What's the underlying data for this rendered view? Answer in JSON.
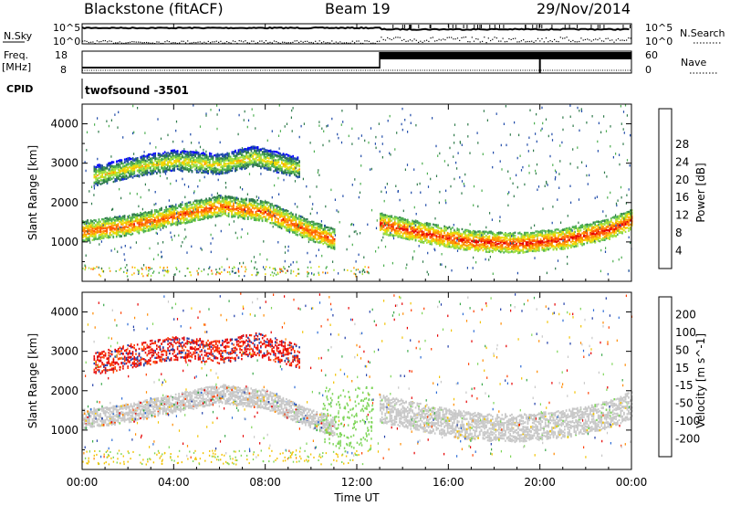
{
  "header": {
    "station": "Blackstone (fitACF)",
    "beam": "Beam 19",
    "date": "29/Nov/2014"
  },
  "side_labels": {
    "nsky": "N.Sky",
    "freq": "Freq.",
    "freq_unit": "[MHz]",
    "cpid": "CPID",
    "nsearch": "N.Search",
    "nave": "Nave"
  },
  "cpid_text": "twofsound  -3501",
  "noise_panel": {
    "left_ticks": [
      "10^5",
      "10^0"
    ],
    "right_ticks": [
      "10^5",
      "10^0"
    ]
  },
  "freq_panel": {
    "left_ticks": [
      "18",
      "8"
    ],
    "right_ticks": [
      "60",
      "0"
    ]
  },
  "chart_data": [
    {
      "type": "heatmap",
      "title": "",
      "ylabel": "Slant Range [km]",
      "xlabel": "Time UT",
      "ylim": [
        0,
        4500
      ],
      "yticks": [
        1000,
        2000,
        3000,
        4000
      ],
      "xlim": [
        0,
        24
      ],
      "xtick_labels": [
        "00:00",
        "04:00",
        "08:00",
        "12:00",
        "16:00",
        "20:00",
        "00:00"
      ],
      "colorbar": {
        "label": "Power [dB]",
        "ticks": [
          "4",
          "8",
          "12",
          "16",
          "20",
          "24",
          "28"
        ],
        "colors": [
          "#0000ff",
          "#1e4aa8",
          "#2e7a4a",
          "#4caf50",
          "#9fe040",
          "#f2d800",
          "#ff9900",
          "#ff5a00",
          "#e60000"
        ]
      },
      "bands": [
        {
          "name": "lower",
          "t": [
            0,
            2,
            4,
            6,
            8,
            10,
            11
          ],
          "range_km": [
            1300,
            1450,
            1700,
            1950,
            1800,
            1300,
            1100
          ],
          "power_db": 24
        },
        {
          "name": "upper",
          "t": [
            0.5,
            2,
            4,
            6,
            7.5,
            9.5
          ],
          "range_km": [
            2700,
            2900,
            3100,
            3000,
            3200,
            2900
          ],
          "power_db": 18
        },
        {
          "name": "morning",
          "t": [
            13,
            15,
            17,
            19,
            21,
            23,
            24
          ],
          "range_km": [
            1500,
            1250,
            1050,
            1000,
            1100,
            1350,
            1600
          ],
          "power_db": 26
        }
      ]
    },
    {
      "type": "heatmap",
      "title": "",
      "ylabel": "Slant Range [km]",
      "xlabel": "Time UT",
      "ylim": [
        0,
        4500
      ],
      "yticks": [
        1000,
        2000,
        3000,
        4000
      ],
      "xlim": [
        0,
        24
      ],
      "xtick_labels": [
        "00:00",
        "04:00",
        "08:00",
        "12:00",
        "16:00",
        "20:00",
        "00:00"
      ],
      "colorbar": {
        "label": "Velocity [m s^-1]",
        "ticks": [
          "200",
          "100",
          "50",
          "15",
          "-15",
          "-50",
          "-100",
          "-200"
        ],
        "colors": [
          "#1e3ca8",
          "#2b6bd6",
          "#3aa84a",
          "#7fd65a",
          "#c8c8c8",
          "#f2c300",
          "#ff8a00",
          "#ff4000",
          "#e60000"
        ]
      }
    }
  ],
  "xlabel": "Time UT"
}
